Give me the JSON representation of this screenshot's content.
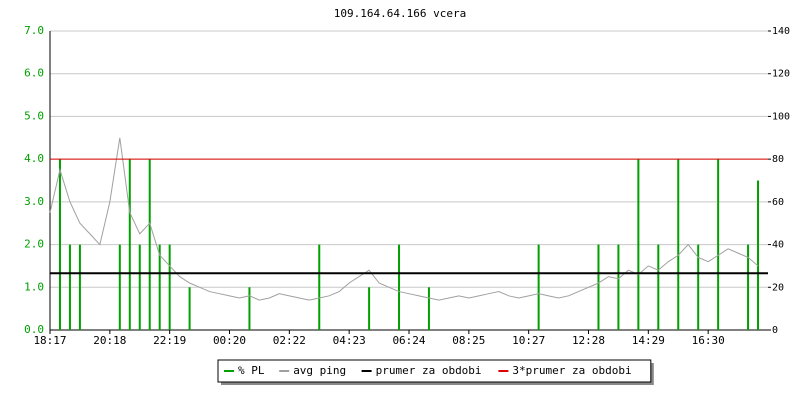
{
  "chart_data": {
    "type": "line",
    "title": "109.164.64.166 vcera",
    "categories": [
      "18:17",
      null,
      null,
      null,
      null,
      null,
      "20:18",
      null,
      null,
      null,
      null,
      null,
      "22:19",
      null,
      null,
      null,
      null,
      null,
      "00:20",
      null,
      null,
      null,
      null,
      null,
      "02:22",
      null,
      null,
      null,
      null,
      null,
      "04:23",
      null,
      null,
      null,
      null,
      null,
      "06:24",
      null,
      null,
      null,
      null,
      null,
      "08:25",
      null,
      null,
      null,
      null,
      null,
      "10:27",
      null,
      null,
      null,
      null,
      null,
      "12:28",
      null,
      null,
      null,
      null,
      null,
      "14:29",
      null,
      null,
      null,
      null,
      null,
      "16:30",
      null,
      null,
      null,
      null,
      null
    ],
    "series": [
      {
        "name": "% PL",
        "color": "#00a000",
        "style": "spikes",
        "values": [
          0,
          4,
          2,
          2,
          0,
          0,
          0,
          2,
          4,
          2,
          4,
          2,
          2,
          0,
          1,
          0,
          0,
          0,
          0,
          0,
          1,
          0,
          0,
          0,
          0,
          0,
          0,
          2,
          0,
          0,
          0,
          0,
          1,
          0,
          0,
          2,
          0,
          0,
          1,
          0,
          0,
          0,
          0,
          0,
          0,
          0,
          0,
          0,
          0,
          2,
          0,
          0,
          0,
          0,
          0,
          2,
          0,
          2,
          0,
          4,
          0,
          2,
          0,
          4,
          0,
          2,
          0,
          4,
          0,
          0,
          2,
          3.5
        ]
      },
      {
        "name": "avg ping",
        "color": "#a0a0a0",
        "style": "line",
        "axis": "y2",
        "values": [
          55,
          75,
          60,
          50,
          45,
          40,
          60,
          90,
          55,
          45,
          50,
          35,
          30,
          25,
          22,
          20,
          18,
          17,
          16,
          15,
          16,
          14,
          15,
          17,
          16,
          15,
          14,
          15,
          16,
          18,
          22,
          25,
          28,
          22,
          20,
          18,
          17,
          16,
          15,
          14,
          15,
          16,
          15,
          16,
          17,
          18,
          16,
          15,
          16,
          17,
          16,
          15,
          16,
          18,
          20,
          22,
          25,
          24,
          28,
          26,
          30,
          28,
          32,
          35,
          40,
          34,
          32,
          35,
          38,
          36,
          34,
          30
        ]
      },
      {
        "name": "prumer za obdobi",
        "color": "#000000",
        "style": "hline",
        "value": 1.33
      },
      {
        "name": "3*prumer za obdobi",
        "color": "#e00000",
        "style": "hline",
        "value": 4.0
      }
    ],
    "ylim": [
      0,
      7
    ],
    "yticks": [
      {
        "value": 0,
        "label": "0.0"
      },
      {
        "value": 1,
        "label": "1.0"
      },
      {
        "value": 2,
        "label": "2.0"
      },
      {
        "value": 3,
        "label": "3.0"
      },
      {
        "value": 4,
        "label": "4.0"
      },
      {
        "value": 5,
        "label": "5.0"
      },
      {
        "value": 6,
        "label": "6.0"
      },
      {
        "value": 7,
        "label": "7.0"
      }
    ],
    "y2lim": [
      0,
      140
    ],
    "y2ticks": [
      0,
      20,
      40,
      60,
      80,
      100,
      120,
      140
    ],
    "grid": true
  }
}
